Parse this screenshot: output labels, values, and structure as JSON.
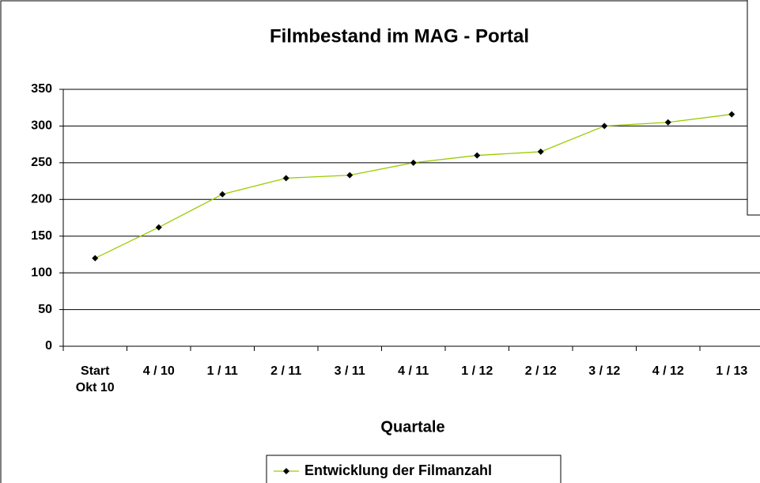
{
  "chart_data": {
    "type": "line",
    "title": "Filmbestand im MAG - Portal",
    "x_label": "Quartale",
    "categories": [
      "Start Okt 10",
      "4 / 10",
      "1 / 11",
      "2 / 11",
      "3 / 11",
      "4 / 11",
      "1 / 12",
      "2 / 12",
      "3 / 12",
      "4 / 12",
      "1 / 13"
    ],
    "series": [
      {
        "name": "Entwicklung der Filmanzahl",
        "color": "#99cc00",
        "marker_color": "#000000",
        "values": [
          120,
          162,
          207,
          229,
          233,
          250,
          260,
          265,
          300,
          305,
          316
        ]
      }
    ],
    "ylim": [
      0,
      350
    ],
    "yticks": [
      0,
      50,
      100,
      150,
      200,
      250,
      300,
      350
    ],
    "grid": true,
    "legend": "bottom"
  }
}
